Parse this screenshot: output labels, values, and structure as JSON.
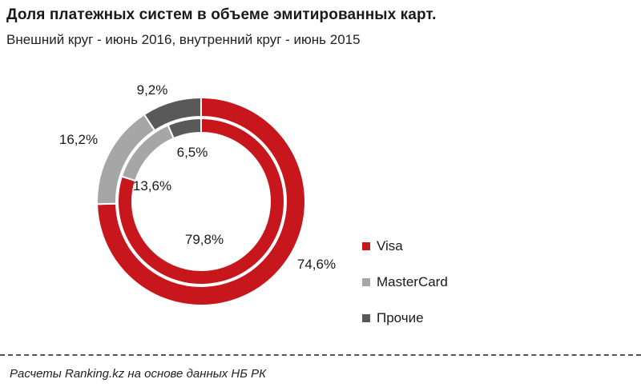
{
  "header": {
    "title": "Доля платежных систем в объеме эмитированных  карт.",
    "subtitle": "Внешний круг - июнь 2016, внутренний круг - июнь 2015"
  },
  "footer": {
    "source": "Расчеты Ranking.kz на основе данных НБ РК"
  },
  "chart_data": {
    "type": "pie",
    "categories": [
      "Visa",
      "MasterCard",
      "Прочие"
    ],
    "colors": [
      "#c8161d",
      "#a6a6a6",
      "#595959"
    ],
    "series": [
      {
        "values": [
          74.6,
          16.2,
          9.2
        ],
        "labels": [
          "74,6%",
          "16,2%",
          "9,2%"
        ]
      },
      {
        "values": [
          79.8,
          13.6,
          6.5
        ],
        "labels": [
          "79,8%",
          "13,6%",
          "6,5%"
        ]
      }
    ],
    "legend": {
      "placement": "right",
      "items": [
        "Visa",
        "MasterCard",
        "Прочие"
      ]
    }
  }
}
